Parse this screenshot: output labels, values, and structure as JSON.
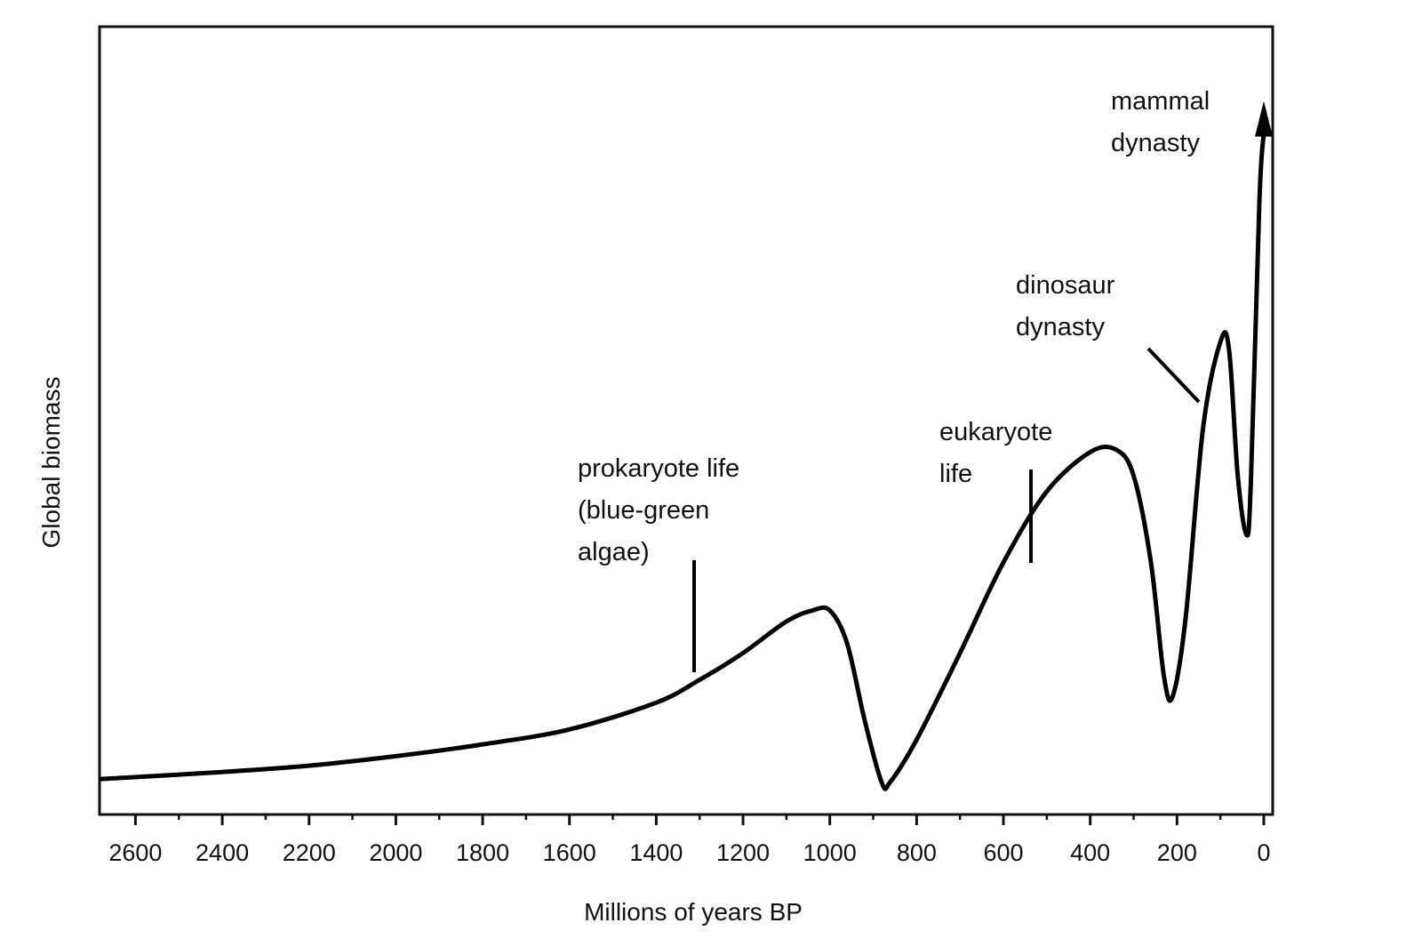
{
  "chart_data": {
    "type": "line",
    "title": "",
    "xlabel": "Millions of years BP",
    "ylabel": "Global biomass",
    "x_reversed": true,
    "xlim": [
      2700,
      0
    ],
    "x_ticks": [
      2600,
      2400,
      2200,
      2000,
      1800,
      1600,
      1400,
      1200,
      1000,
      800,
      600,
      400,
      200,
      0
    ],
    "x_tick_labels": [
      "2600",
      "2400",
      "2200",
      "2000",
      "1800",
      "1600",
      "1400",
      "1200",
      "1000",
      "800",
      "600",
      "400",
      "200",
      "0"
    ],
    "y_ticks_shown": false,
    "grid": false,
    "y_unit": "relative",
    "ylim": [
      0,
      100
    ],
    "series": [
      {
        "points": [
          [
            2680,
            4.5
          ],
          [
            2400,
            5.4
          ],
          [
            2200,
            6.2
          ],
          [
            2000,
            7.4
          ],
          [
            1800,
            8.9
          ],
          [
            1600,
            10.8
          ],
          [
            1400,
            14.2
          ],
          [
            1300,
            17.1
          ],
          [
            1200,
            20.5
          ],
          [
            1100,
            24.5
          ],
          [
            1040,
            25.9
          ],
          [
            1000,
            25.9
          ],
          [
            960,
            21.7
          ],
          [
            920,
            12.0
          ],
          [
            880,
            4.0
          ],
          [
            860,
            4.2
          ],
          [
            800,
            9.5
          ],
          [
            700,
            20.5
          ],
          [
            600,
            32.0
          ],
          [
            500,
            41.0
          ],
          [
            400,
            46.0
          ],
          [
            340,
            46.3
          ],
          [
            300,
            43.0
          ],
          [
            260,
            32.0
          ],
          [
            230,
            17.5
          ],
          [
            210,
            15.0
          ],
          [
            180,
            25.0
          ],
          [
            140,
            49.0
          ],
          [
            100,
            60.0
          ],
          [
            80,
            59.0
          ],
          [
            60,
            43.0
          ],
          [
            40,
            35.5
          ],
          [
            30,
            42.0
          ],
          [
            10,
            78.0
          ],
          [
            0,
            86.5
          ]
        ],
        "arrow_at_end": true
      }
    ],
    "annotations": [
      {
        "lines": [
          "prokaryote life",
          "(blue-green",
          "algae)"
        ],
        "x": 1330,
        "y": 18
      },
      {
        "lines": [
          "eukaryote",
          "life"
        ],
        "x": 550,
        "y": 32
      },
      {
        "lines": [
          "dinosaur",
          "dynasty"
        ],
        "x": 170,
        "y": 52
      },
      {
        "lines": [
          "mammal",
          "dynasty"
        ],
        "x": 0,
        "y": 86
      }
    ]
  }
}
